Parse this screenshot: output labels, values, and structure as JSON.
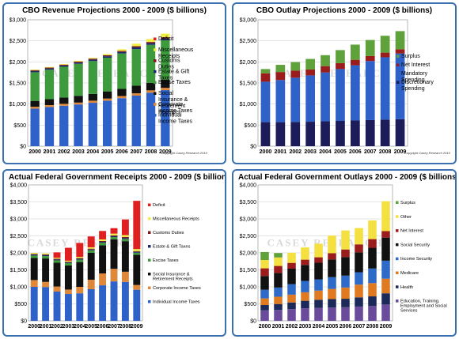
{
  "chart_data": [
    {
      "type": "bar",
      "stacked": true,
      "title": "CBO Revenue Projections  2000 - 2009 ($ billions)",
      "categories": [
        "2000",
        "2001",
        "2002",
        "2003",
        "2004",
        "2005",
        "2006",
        "2007",
        "2008",
        "2009"
      ],
      "ylim": [
        0,
        3000
      ],
      "yticks": [
        "$0",
        "$500",
        "$1,000",
        "$1,500",
        "$2,000",
        "$2,500",
        "$3,000"
      ],
      "ytick_values": [
        0,
        500,
        1000,
        1500,
        2000,
        2500,
        3000
      ],
      "grid": true,
      "legend_position": "right",
      "credit": "Copyright Casey Research 2010",
      "watermark": "CASEY RESEARCH",
      "colors": {
        "Individual Income Taxes": "#2e62c8",
        "Corporate Income Taxes": "#e0883a",
        "Social Insurance & Retirement Receipts": "#111111",
        "Excise Taxes": "#3d9a3d",
        "Estate & Gift Taxes": "#1f2a6a",
        "Customs Duties": "#7a1a1a",
        "Miscellaneous Receipts": "#eeee44",
        "Deficit": "#e02020"
      },
      "series": [
        {
          "name": "Individual Income Taxes",
          "values": [
            890,
            930,
            960,
            990,
            1030,
            1080,
            1140,
            1200,
            1270,
            1330
          ]
        },
        {
          "name": "Corporate Income Taxes",
          "values": [
            45,
            45,
            45,
            45,
            50,
            50,
            50,
            55,
            55,
            55
          ]
        },
        {
          "name": "Social Insurance & Retirement Receipts",
          "values": [
            140,
            140,
            150,
            160,
            160,
            170,
            170,
            180,
            180,
            190
          ]
        },
        {
          "name": "Excise Taxes",
          "values": [
            680,
            700,
            730,
            760,
            780,
            800,
            840,
            870,
            900,
            940
          ]
        },
        {
          "name": "Estate & Gift Taxes",
          "values": [
            30,
            30,
            30,
            30,
            35,
            35,
            35,
            40,
            40,
            40
          ]
        },
        {
          "name": "Customs Duties",
          "values": [
            20,
            20,
            20,
            22,
            22,
            25,
            25,
            27,
            28,
            30
          ]
        },
        {
          "name": "Miscellaneous Receipts",
          "values": [
            15,
            15,
            15,
            20,
            20,
            25,
            40,
            60,
            70,
            85
          ]
        },
        {
          "name": "Deficit",
          "values": [
            0,
            0,
            0,
            0,
            0,
            0,
            0,
            0,
            0,
            0
          ]
        }
      ]
    },
    {
      "type": "bar",
      "stacked": true,
      "title": "CBO Outlay Projections 2000 - 2009 ($ billions)",
      "categories": [
        "2000",
        "2001",
        "2002",
        "2003",
        "2004",
        "2005",
        "2006",
        "2007",
        "2008",
        "2009"
      ],
      "ylim": [
        0,
        3000
      ],
      "yticks": [
        "$0",
        "$500",
        "$1,000",
        "$1,500",
        "$2,000",
        "$2,500",
        "$3,000"
      ],
      "ytick_values": [
        0,
        500,
        1000,
        1500,
        2000,
        2500,
        3000
      ],
      "grid": true,
      "legend_position": "right",
      "credit": "Copyright Casey Research 2010",
      "watermark": "CASEY RESEARCH",
      "colors": {
        "Discretionary Spending": "#1c1c5a",
        "Mandatory Spending": "#2e62c8",
        "Net Interest": "#9a1c1c",
        "Surplus": "#5fa13a"
      },
      "series": [
        {
          "name": "Discretionary Spending",
          "values": [
            570,
            570,
            575,
            580,
            590,
            600,
            610,
            620,
            630,
            640
          ]
        },
        {
          "name": "Mandatory Spending",
          "values": [
            960,
            1000,
            1050,
            1100,
            1160,
            1230,
            1310,
            1400,
            1480,
            1560
          ]
        },
        {
          "name": "Net Interest",
          "values": [
            200,
            190,
            170,
            140,
            150,
            140,
            130,
            120,
            110,
            100
          ]
        },
        {
          "name": "Surplus",
          "values": [
            100,
            170,
            200,
            250,
            260,
            310,
            360,
            380,
            400,
            430
          ]
        }
      ]
    },
    {
      "type": "bar",
      "stacked": true,
      "title": "Actual Federal Government Receipts 2000 - 2009 ($ billions)",
      "categories": [
        "2000",
        "2001",
        "2002",
        "2003",
        "2004",
        "2005",
        "2006",
        "2007",
        "2008",
        "2009"
      ],
      "ylim": [
        0,
        4000
      ],
      "yticks": [
        "$0",
        "$500",
        "$1,000",
        "$1,500",
        "$2,000",
        "$2,500",
        "$3,000",
        "$3,500",
        "$4,000"
      ],
      "ytick_values": [
        0,
        500,
        1000,
        1500,
        2000,
        2500,
        3000,
        3500,
        4000
      ],
      "grid": true,
      "legend_position": "right",
      "watermark": "CASEY RESEARCH",
      "colors": {
        "Individual Income Taxes": "#2e62c8",
        "Corporate Income Taxes": "#e0883a",
        "Social Insurance & Retirement Receipts": "#111111",
        "Excise Taxes": "#3d9a3d",
        "Estate & Gift Taxes": "#1f2a6a",
        "Customs Duties": "#7a1a1a",
        "Miscellaneous Receipts": "#eeee44",
        "Deficit": "#e02020"
      },
      "series": [
        {
          "name": "Individual Income Taxes",
          "values": [
            1000,
            995,
            860,
            790,
            810,
            930,
            1045,
            1160,
            1145,
            915
          ]
        },
        {
          "name": "Corporate Income Taxes",
          "values": [
            200,
            150,
            150,
            130,
            190,
            280,
            350,
            370,
            300,
            140
          ]
        },
        {
          "name": "Social Insurance & Retirement Receipts",
          "values": [
            650,
            690,
            700,
            710,
            730,
            790,
            830,
            870,
            900,
            890
          ]
        },
        {
          "name": "Excise Taxes",
          "values": [
            70,
            70,
            70,
            70,
            70,
            75,
            75,
            65,
            65,
            60
          ]
        },
        {
          "name": "Estate & Gift Taxes",
          "values": [
            30,
            30,
            25,
            20,
            25,
            25,
            25,
            25,
            30,
            25
          ]
        },
        {
          "name": "Customs Duties",
          "values": [
            20,
            20,
            20,
            20,
            22,
            24,
            25,
            27,
            28,
            22
          ]
        },
        {
          "name": "Miscellaneous Receipts",
          "values": [
            30,
            30,
            30,
            30,
            35,
            40,
            45,
            50,
            55,
            60
          ]
        },
        {
          "name": "Deficit",
          "values": [
            0,
            0,
            160,
            380,
            410,
            320,
            250,
            160,
            460,
            1420
          ]
        }
      ]
    },
    {
      "type": "bar",
      "stacked": true,
      "title": "Actual Federal Government Outlays 2000 - 2009 ($ billions)",
      "categories": [
        "2000",
        "2001",
        "2002",
        "2003",
        "2004",
        "2005",
        "2006",
        "2007",
        "2008",
        "2009"
      ],
      "ylim": [
        0,
        4000
      ],
      "yticks": [
        "$0",
        "$500",
        "$1,000",
        "$1,500",
        "$2,000",
        "$2,500",
        "$3,000",
        "$3,500",
        "$4,000"
      ],
      "ytick_values": [
        0,
        500,
        1000,
        1500,
        2000,
        2500,
        3000,
        3500,
        4000
      ],
      "grid": true,
      "legend_position": "right",
      "watermark": "CASEY RESEARCH",
      "colors": {
        "Education, Training, Employment and Social Services": "#6a4a9a",
        "Health": "#1c2a5a",
        "Medicare": "#e07a20",
        "Income Security": "#2e6ac8",
        "Social Security": "#111111",
        "Net Interest": "#9a1c1c",
        "Other": "#f4e040",
        "Surplus": "#5fa13a"
      },
      "series": [
        {
          "name": "Education, Training, Employment and Social Services",
          "values": [
            310,
            320,
            345,
            370,
            380,
            390,
            400,
            420,
            440,
            480
          ]
        },
        {
          "name": "Health",
          "values": [
            155,
            175,
            195,
            220,
            240,
            250,
            250,
            270,
            280,
            330
          ]
        },
        {
          "name": "Medicare",
          "values": [
            195,
            215,
            230,
            250,
            270,
            300,
            330,
            375,
            390,
            430
          ]
        },
        {
          "name": "Income Security",
          "values": [
            255,
            270,
            310,
            335,
            330,
            345,
            350,
            365,
            430,
            530
          ]
        },
        {
          "name": "Social Security",
          "values": [
            405,
            430,
            455,
            470,
            490,
            520,
            545,
            585,
            610,
            680
          ]
        },
        {
          "name": "Net Interest",
          "values": [
            225,
            205,
            170,
            155,
            160,
            185,
            225,
            235,
            255,
            190
          ]
        },
        {
          "name": "Other",
          "values": [
            245,
            250,
            300,
            360,
            400,
            520,
            560,
            480,
            550,
            880
          ]
        },
        {
          "name": "Surplus",
          "values": [
            235,
            130,
            0,
            0,
            0,
            0,
            0,
            0,
            0,
            0
          ]
        }
      ]
    }
  ]
}
